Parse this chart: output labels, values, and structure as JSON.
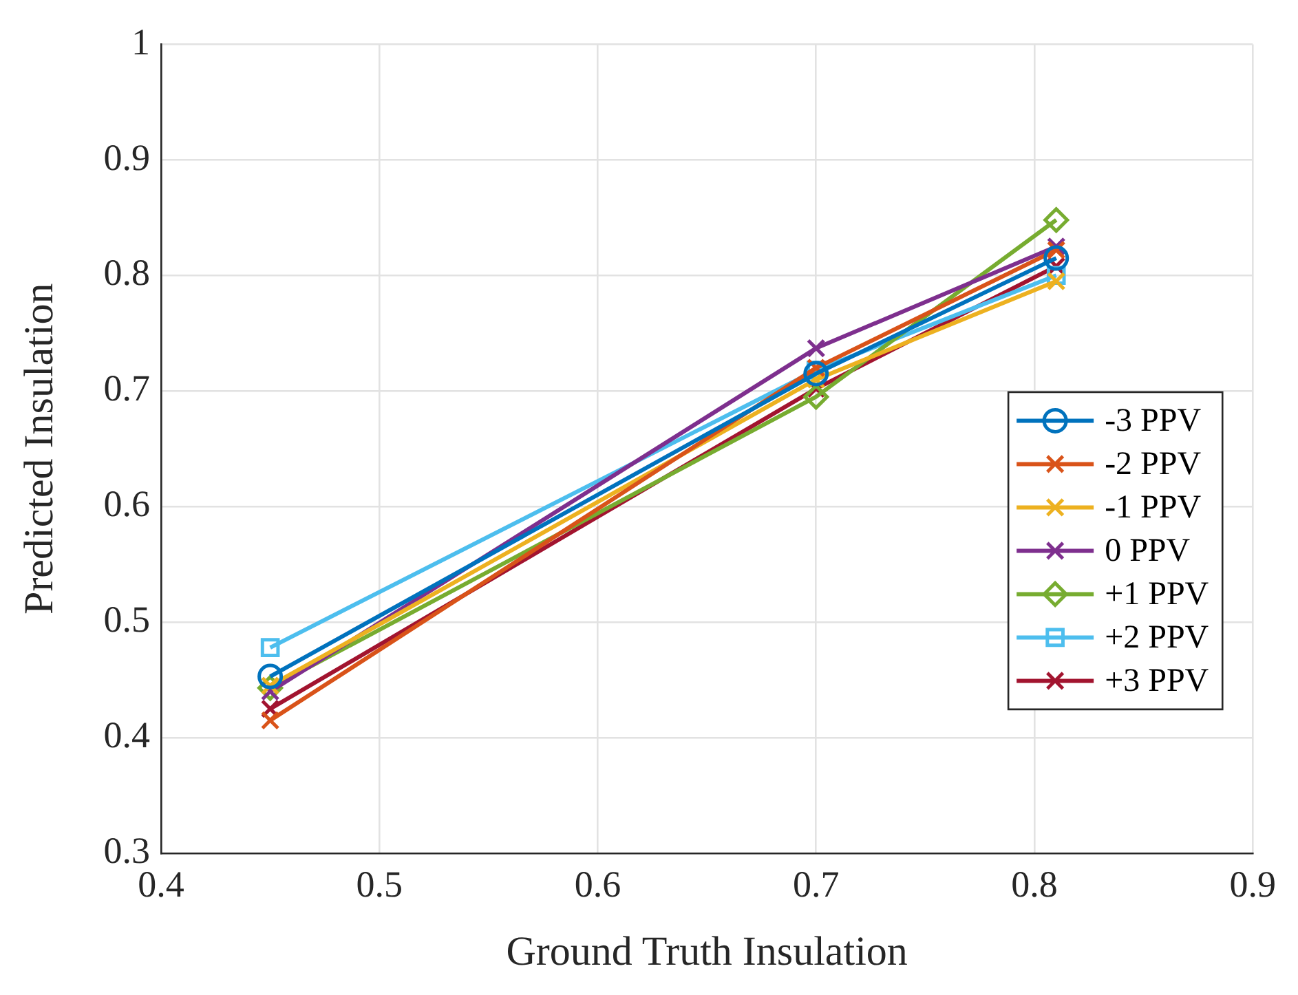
{
  "chart_data": {
    "type": "line",
    "xlabel": "Ground Truth Insulation",
    "ylabel": "Predicted Insulation",
    "x": [
      0.45,
      0.7,
      0.81
    ],
    "series": [
      {
        "name": "-3 PPV",
        "color": "#0072bd",
        "marker": "circle",
        "values": [
          0.453,
          0.715,
          0.815
        ]
      },
      {
        "name": "-2 PPV",
        "color": "#d95319",
        "marker": "cross",
        "values": [
          0.415,
          0.72,
          0.822
        ]
      },
      {
        "name": "-1 PPV",
        "color": "#edb120",
        "marker": "cross",
        "values": [
          0.445,
          0.71,
          0.795
        ]
      },
      {
        "name": "0 PPV",
        "color": "#7e2f8e",
        "marker": "cross",
        "values": [
          0.44,
          0.737,
          0.825
        ]
      },
      {
        "name": "+1 PPV",
        "color": "#77ac30",
        "marker": "diamond",
        "values": [
          0.443,
          0.695,
          0.848
        ]
      },
      {
        "name": "+2 PPV",
        "color": "#4dbeee",
        "marker": "square",
        "values": [
          0.478,
          0.718,
          0.8
        ]
      },
      {
        "name": "+3 PPV",
        "color": "#a2142f",
        "marker": "cross",
        "values": [
          0.425,
          0.702,
          0.808
        ]
      }
    ],
    "xlim": [
      0.4,
      0.9
    ],
    "xticks": [
      0.4,
      0.5,
      0.6,
      0.7,
      0.8,
      0.9
    ],
    "ylim": [
      0.3,
      1
    ],
    "yticks": [
      0.3,
      0.4,
      0.5,
      0.6,
      0.7,
      0.8,
      0.9,
      1
    ],
    "grid": true,
    "legend": "right",
    "line_style": "solid"
  }
}
